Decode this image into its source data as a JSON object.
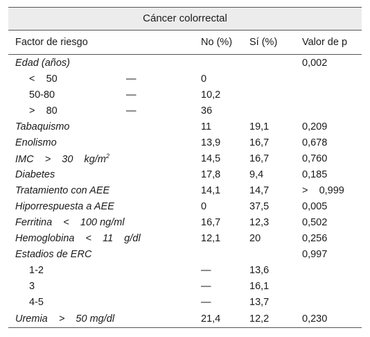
{
  "caption": "Cáncer colorrectal",
  "headers": {
    "factor": "Factor de riesgo",
    "no": "No (%)",
    "si": "Sí (%)",
    "p": "Valor de p"
  },
  "rows": [
    {
      "factor": "Edad (años)",
      "no": "",
      "si": "",
      "p": "0,002",
      "italic": true
    },
    {
      "factor": "<    50",
      "extra": "—",
      "no": "0",
      "si": "",
      "p": "",
      "indent": true
    },
    {
      "factor": "50-80",
      "extra": "—",
      "no": "10,2",
      "si": "",
      "p": "",
      "indent": true
    },
    {
      "factor": ">    80",
      "extra": "—",
      "no": "36",
      "si": "",
      "p": "",
      "indent": true
    },
    {
      "factor": "Tabaquismo",
      "no": "11",
      "si": "19,1",
      "p": "0,209",
      "italic": true
    },
    {
      "factor": "Enolismo",
      "no": "13,9",
      "si": "16,7",
      "p": "0,678",
      "italic": true
    },
    {
      "factor": "IMC    >    30    kg/m",
      "sup": "2",
      "no": "14,5",
      "si": "16,7",
      "p": "0,760",
      "italic": true
    },
    {
      "factor": "Diabetes",
      "no": "17,8",
      "si": "9,4",
      "p": "0,185",
      "italic": true
    },
    {
      "factor": "Tratamiento con AEE",
      "no": "14,1",
      "si": "14,7",
      "p": ">    0,999",
      "italic": true
    },
    {
      "factor": "Hiporrespuesta a AEE",
      "no": "0",
      "si": "37,5",
      "p": "0,005",
      "italic": true
    },
    {
      "factor": "Ferritina    <    100 ng/ml",
      "no": "16,7",
      "si": "12,3",
      "p": "0,502",
      "italic": true
    },
    {
      "factor": "Hemoglobina    <    11    g/dl",
      "no": "12,1",
      "si": "20",
      "p": "0,256",
      "italic": true
    },
    {
      "factor": "Estadios de ERC",
      "no": "",
      "si": "",
      "p": "0,997",
      "italic": true
    },
    {
      "factor": "1-2",
      "no": "—",
      "si": "13,6",
      "p": "",
      "indent": true
    },
    {
      "factor": "3",
      "no": "—",
      "si": "16,1",
      "p": "",
      "indent": true
    },
    {
      "factor": "4-5",
      "no": "—",
      "si": "13,7",
      "p": "",
      "indent": true
    },
    {
      "factor": "Uremia    >    50 mg/dl",
      "no": "21,4",
      "si": "12,2",
      "p": "0,230",
      "italic": true
    }
  ]
}
